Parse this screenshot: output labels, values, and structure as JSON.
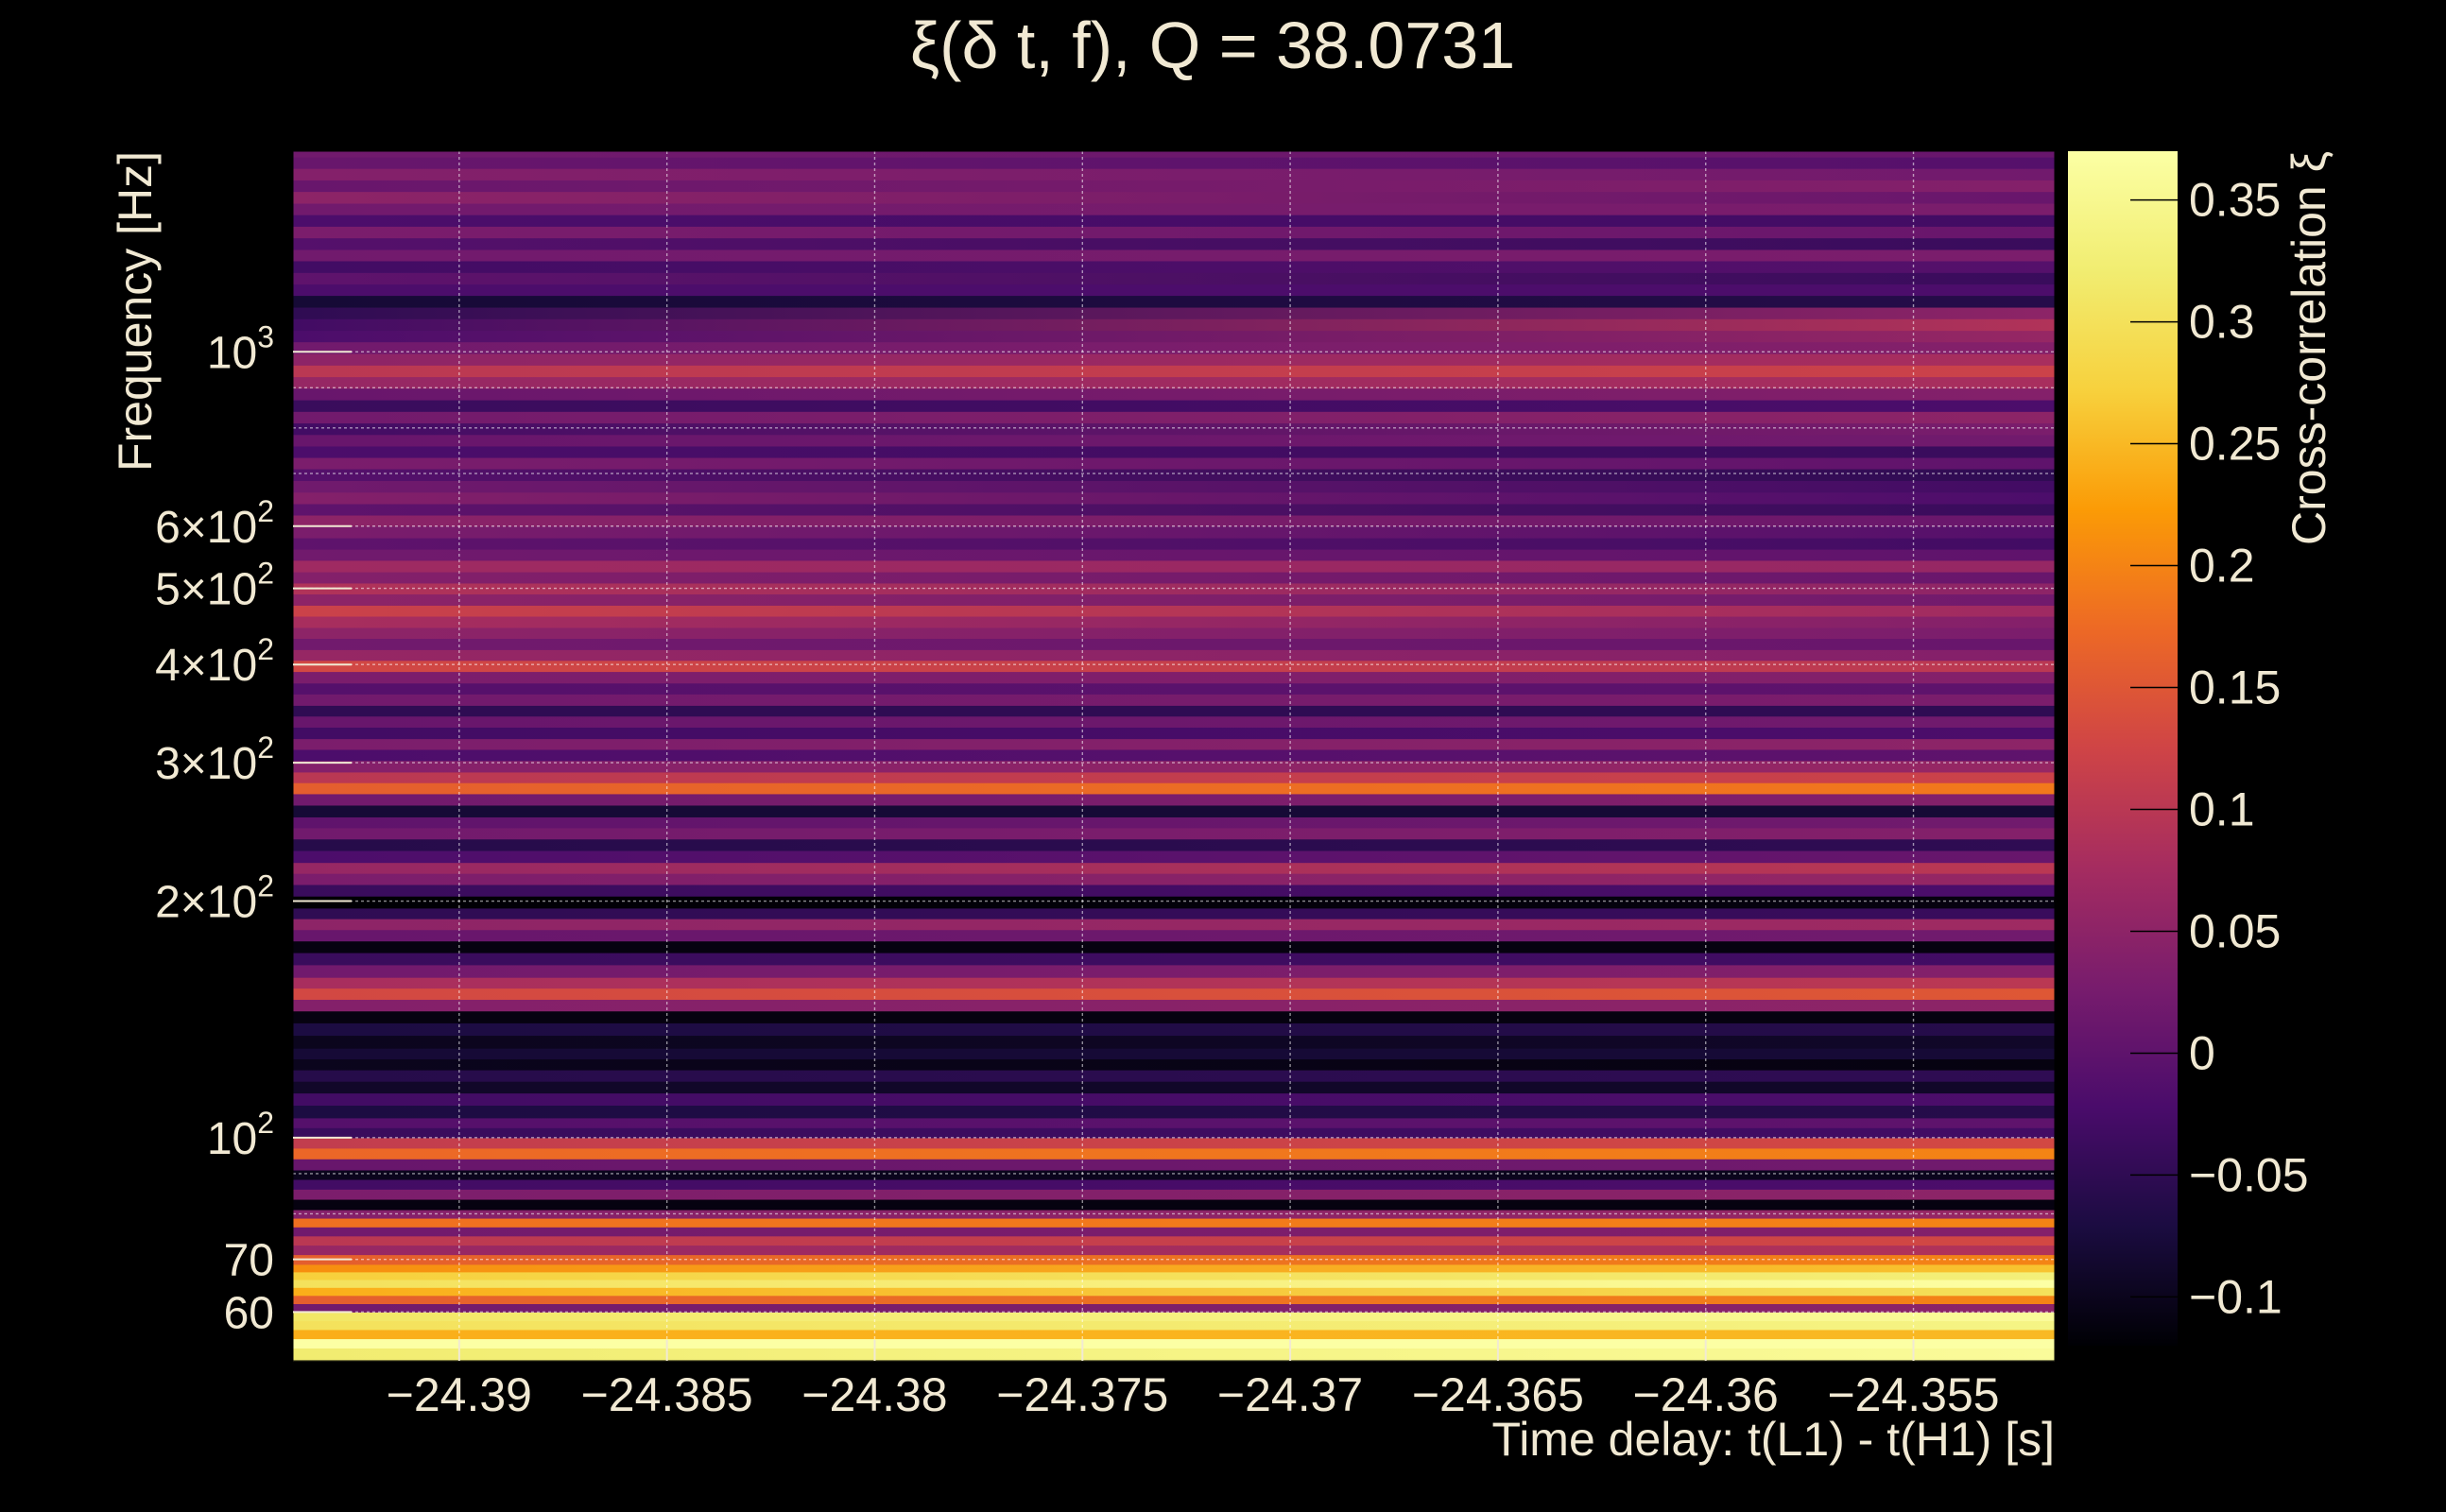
{
  "chart_data": {
    "type": "heatmap",
    "title": "ξ(δ t, f), Q = 38.0731",
    "xlabel": "Time delay: t(L1) - t(H1) [s]",
    "ylabel": "Frequency [Hz]",
    "colorbar_label": "Cross-correlation ξ",
    "xlim": [
      -24.394,
      -24.3516
    ],
    "ylim": [
      52,
      1800
    ],
    "yscale": "log",
    "grid": true,
    "colormap": "inferno",
    "color_range": [
      -0.12,
      0.37
    ],
    "x_ticks": [
      {
        "value": -24.39,
        "label": "−24.39"
      },
      {
        "value": -24.385,
        "label": "−24.385"
      },
      {
        "value": -24.38,
        "label": "−24.38"
      },
      {
        "value": -24.375,
        "label": "−24.375"
      },
      {
        "value": -24.37,
        "label": "−24.37"
      },
      {
        "value": -24.365,
        "label": "−24.365"
      },
      {
        "value": -24.36,
        "label": "−24.36"
      },
      {
        "value": -24.355,
        "label": "−24.355"
      }
    ],
    "y_ticks": [
      {
        "value": 60,
        "base": "60",
        "exp": ""
      },
      {
        "value": 70,
        "base": "70",
        "exp": ""
      },
      {
        "value": 100,
        "base": "10",
        "exp": "2"
      },
      {
        "value": 200,
        "base": "2×10",
        "exp": "2"
      },
      {
        "value": 300,
        "base": "3×10",
        "exp": "2"
      },
      {
        "value": 400,
        "base": "4×10",
        "exp": "2"
      },
      {
        "value": 500,
        "base": "5×10",
        "exp": "2"
      },
      {
        "value": 600,
        "base": "6×10",
        "exp": "2"
      },
      {
        "value": 1000,
        "base": "10",
        "exp": "3"
      }
    ],
    "y_minor_grid": [
      80,
      90,
      700,
      800,
      900
    ],
    "colorbar_ticks": [
      {
        "value": 0.35,
        "label": "0.35"
      },
      {
        "value": 0.3,
        "label": "0.3"
      },
      {
        "value": 0.25,
        "label": "0.25"
      },
      {
        "value": 0.2,
        "label": "0.2"
      },
      {
        "value": 0.15,
        "label": "0.15"
      },
      {
        "value": 0.1,
        "label": "0.1"
      },
      {
        "value": 0.05,
        "label": "0.05"
      },
      {
        "value": 0,
        "label": "0"
      },
      {
        "value": -0.05,
        "label": "−0.05"
      },
      {
        "value": -0.1,
        "label": "−0.1"
      }
    ],
    "bands": [
      {
        "f_lo": 52,
        "f_hi": 54,
        "start": 0.32,
        "end": 0.36
      },
      {
        "f_lo": 54,
        "f_hi": 55.5,
        "start": 0.37,
        "end": 0.37
      },
      {
        "f_lo": 55.5,
        "f_hi": 57,
        "start": 0.24,
        "end": 0.25
      },
      {
        "f_lo": 57,
        "f_hi": 58.5,
        "start": 0.3,
        "end": 0.34
      },
      {
        "f_lo": 58.5,
        "f_hi": 60,
        "start": 0.31,
        "end": 0.36
      },
      {
        "f_lo": 60,
        "f_hi": 61.5,
        "start": 0.02,
        "end": 0.05
      },
      {
        "f_lo": 61.5,
        "f_hi": 63,
        "start": 0.16,
        "end": 0.2
      },
      {
        "f_lo": 63,
        "f_hi": 64.5,
        "start": 0.24,
        "end": 0.3
      },
      {
        "f_lo": 64.5,
        "f_hi": 66,
        "start": 0.3,
        "end": 0.37
      },
      {
        "f_lo": 66,
        "f_hi": 67.5,
        "start": 0.27,
        "end": 0.33
      },
      {
        "f_lo": 67.5,
        "f_hi": 69,
        "start": 0.21,
        "end": 0.26
      },
      {
        "f_lo": 69,
        "f_hi": 71,
        "start": 0.16,
        "end": 0.2
      },
      {
        "f_lo": 71,
        "f_hi": 73,
        "start": 0.06,
        "end": 0.09
      },
      {
        "f_lo": 73,
        "f_hi": 75,
        "start": 0.1,
        "end": 0.13
      },
      {
        "f_lo": 75,
        "f_hi": 77,
        "start": 0.02,
        "end": 0.04
      },
      {
        "f_lo": 77,
        "f_hi": 79,
        "start": 0.18,
        "end": 0.2
      },
      {
        "f_lo": 79,
        "f_hi": 81,
        "start": 0.04,
        "end": 0.06
      },
      {
        "f_lo": 81,
        "f_hi": 83.5,
        "start": -0.11,
        "end": -0.11
      },
      {
        "f_lo": 83.5,
        "f_hi": 86,
        "start": 0.03,
        "end": 0.05
      },
      {
        "f_lo": 86,
        "f_hi": 88.5,
        "start": -0.03,
        "end": -0.02
      },
      {
        "f_lo": 88.5,
        "f_hi": 91,
        "start": -0.1,
        "end": -0.1
      },
      {
        "f_lo": 91,
        "f_hi": 94,
        "start": 0.01,
        "end": 0.02
      },
      {
        "f_lo": 94,
        "f_hi": 97,
        "start": 0.17,
        "end": 0.2
      },
      {
        "f_lo": 97,
        "f_hi": 100,
        "start": 0.11,
        "end": 0.13
      },
      {
        "f_lo": 100,
        "f_hi": 103,
        "start": -0.04,
        "end": -0.03
      },
      {
        "f_lo": 103,
        "f_hi": 106,
        "start": -0.01,
        "end": 0.0
      },
      {
        "f_lo": 106,
        "f_hi": 110,
        "start": -0.07,
        "end": -0.06
      },
      {
        "f_lo": 110,
        "f_hi": 114,
        "start": -0.03,
        "end": -0.02
      },
      {
        "f_lo": 114,
        "f_hi": 118,
        "start": -0.09,
        "end": -0.09
      },
      {
        "f_lo": 118,
        "f_hi": 122,
        "start": -0.06,
        "end": -0.05
      },
      {
        "f_lo": 122,
        "f_hi": 126,
        "start": -0.1,
        "end": -0.11
      },
      {
        "f_lo": 126,
        "f_hi": 130,
        "start": -0.08,
        "end": -0.08
      },
      {
        "f_lo": 130,
        "f_hi": 135,
        "start": -0.1,
        "end": -0.09
      },
      {
        "f_lo": 135,
        "f_hi": 140,
        "start": -0.07,
        "end": -0.06
      },
      {
        "f_lo": 140,
        "f_hi": 145,
        "start": -0.11,
        "end": -0.11
      },
      {
        "f_lo": 145,
        "f_hi": 150,
        "start": 0.04,
        "end": 0.05
      },
      {
        "f_lo": 150,
        "f_hi": 155,
        "start": 0.13,
        "end": 0.15
      },
      {
        "f_lo": 155,
        "f_hi": 160,
        "start": 0.08,
        "end": 0.1
      },
      {
        "f_lo": 160,
        "f_hi": 166,
        "start": 0.02,
        "end": 0.04
      },
      {
        "f_lo": 166,
        "f_hi": 172,
        "start": -0.04,
        "end": -0.03
      },
      {
        "f_lo": 172,
        "f_hi": 178,
        "start": -0.11,
        "end": -0.11
      },
      {
        "f_lo": 178,
        "f_hi": 184,
        "start": 0.01,
        "end": 0.02
      },
      {
        "f_lo": 184,
        "f_hi": 190,
        "start": 0.05,
        "end": 0.07
      },
      {
        "f_lo": 190,
        "f_hi": 196,
        "start": -0.05,
        "end": -0.04
      },
      {
        "f_lo": 196,
        "f_hi": 203,
        "start": -0.12,
        "end": -0.11
      },
      {
        "f_lo": 203,
        "f_hi": 210,
        "start": -0.04,
        "end": -0.02
      },
      {
        "f_lo": 210,
        "f_hi": 217,
        "start": 0.03,
        "end": 0.06
      },
      {
        "f_lo": 217,
        "f_hi": 224,
        "start": 0.06,
        "end": 0.1
      },
      {
        "f_lo": 224,
        "f_hi": 232,
        "start": -0.02,
        "end": 0.01
      },
      {
        "f_lo": 232,
        "f_hi": 240,
        "start": -0.06,
        "end": -0.05
      },
      {
        "f_lo": 240,
        "f_hi": 248,
        "start": 0.02,
        "end": 0.04
      },
      {
        "f_lo": 248,
        "f_hi": 256,
        "start": 0.0,
        "end": 0.02
      },
      {
        "f_lo": 256,
        "f_hi": 265,
        "start": -0.08,
        "end": -0.08
      },
      {
        "f_lo": 265,
        "f_hi": 274,
        "start": 0.02,
        "end": 0.04
      },
      {
        "f_lo": 274,
        "f_hi": 283,
        "start": 0.16,
        "end": 0.19
      },
      {
        "f_lo": 283,
        "f_hi": 292,
        "start": 0.1,
        "end": 0.12
      },
      {
        "f_lo": 292,
        "f_hi": 302,
        "start": 0.04,
        "end": 0.06
      },
      {
        "f_lo": 302,
        "f_hi": 312,
        "start": -0.02,
        "end": 0.0
      },
      {
        "f_lo": 312,
        "f_hi": 322,
        "start": 0.03,
        "end": 0.05
      },
      {
        "f_lo": 322,
        "f_hi": 333,
        "start": -0.03,
        "end": -0.02
      },
      {
        "f_lo": 333,
        "f_hi": 344,
        "start": 0.01,
        "end": 0.02
      },
      {
        "f_lo": 344,
        "f_hi": 355,
        "start": -0.05,
        "end": -0.05
      },
      {
        "f_lo": 355,
        "f_hi": 367,
        "start": 0.02,
        "end": 0.03
      },
      {
        "f_lo": 367,
        "f_hi": 379,
        "start": -0.01,
        "end": 0.0
      },
      {
        "f_lo": 379,
        "f_hi": 392,
        "start": 0.03,
        "end": 0.04
      },
      {
        "f_lo": 392,
        "f_hi": 405,
        "start": 0.13,
        "end": 0.1
      },
      {
        "f_lo": 405,
        "f_hi": 418,
        "start": 0.06,
        "end": 0.04
      },
      {
        "f_lo": 418,
        "f_hi": 432,
        "start": 0.02,
        "end": 0.01
      },
      {
        "f_lo": 432,
        "f_hi": 446,
        "start": 0.05,
        "end": 0.03
      },
      {
        "f_lo": 446,
        "f_hi": 461,
        "start": 0.08,
        "end": 0.04
      },
      {
        "f_lo": 461,
        "f_hi": 476,
        "start": 0.12,
        "end": 0.07
      },
      {
        "f_lo": 476,
        "f_hi": 492,
        "start": 0.05,
        "end": 0.02
      },
      {
        "f_lo": 492,
        "f_hi": 508,
        "start": 0.09,
        "end": 0.05
      },
      {
        "f_lo": 508,
        "f_hi": 525,
        "start": 0.04,
        "end": 0.01
      },
      {
        "f_lo": 525,
        "f_hi": 543,
        "start": 0.07,
        "end": 0.06
      },
      {
        "f_lo": 543,
        "f_hi": 561,
        "start": 0.02,
        "end": 0.0
      },
      {
        "f_lo": 561,
        "f_hi": 580,
        "start": 0.0,
        "end": -0.03
      },
      {
        "f_lo": 580,
        "f_hi": 600,
        "start": 0.03,
        "end": -0.01
      },
      {
        "f_lo": 600,
        "f_hi": 620,
        "start": 0.05,
        "end": 0.01
      },
      {
        "f_lo": 620,
        "f_hi": 641,
        "start": 0.0,
        "end": -0.04
      },
      {
        "f_lo": 641,
        "f_hi": 663,
        "start": 0.04,
        "end": -0.02
      },
      {
        "f_lo": 663,
        "f_hi": 686,
        "start": 0.02,
        "end": -0.03
      },
      {
        "f_lo": 686,
        "f_hi": 710,
        "start": -0.01,
        "end": -0.05
      },
      {
        "f_lo": 710,
        "f_hi": 734,
        "start": 0.03,
        "end": 0.0
      },
      {
        "f_lo": 734,
        "f_hi": 759,
        "start": -0.02,
        "end": -0.04
      },
      {
        "f_lo": 759,
        "f_hi": 785,
        "start": 0.01,
        "end": 0.02
      },
      {
        "f_lo": 785,
        "f_hi": 812,
        "start": -0.03,
        "end": 0.03
      },
      {
        "f_lo": 812,
        "f_hi": 840,
        "start": 0.02,
        "end": 0.05
      },
      {
        "f_lo": 840,
        "f_hi": 869,
        "start": -0.04,
        "end": -0.02
      },
      {
        "f_lo": 869,
        "f_hi": 899,
        "start": 0.01,
        "end": 0.04
      },
      {
        "f_lo": 899,
        "f_hi": 930,
        "start": 0.06,
        "end": 0.08
      },
      {
        "f_lo": 930,
        "f_hi": 962,
        "start": 0.1,
        "end": 0.12
      },
      {
        "f_lo": 962,
        "f_hi": 995,
        "start": 0.05,
        "end": 0.08
      },
      {
        "f_lo": 995,
        "f_hi": 1030,
        "start": 0.02,
        "end": 0.04
      },
      {
        "f_lo": 1030,
        "f_hi": 1065,
        "start": -0.02,
        "end": 0.06
      },
      {
        "f_lo": 1065,
        "f_hi": 1102,
        "start": -0.03,
        "end": 0.09
      },
      {
        "f_lo": 1102,
        "f_hi": 1140,
        "start": -0.05,
        "end": 0.05
      },
      {
        "f_lo": 1140,
        "f_hi": 1180,
        "start": -0.08,
        "end": -0.06
      },
      {
        "f_lo": 1180,
        "f_hi": 1220,
        "start": -0.02,
        "end": -0.02
      },
      {
        "f_lo": 1220,
        "f_hi": 1262,
        "start": 0.0,
        "end": -0.04
      },
      {
        "f_lo": 1262,
        "f_hi": 1306,
        "start": -0.03,
        "end": -0.01
      },
      {
        "f_lo": 1306,
        "f_hi": 1350,
        "start": 0.02,
        "end": 0.03
      },
      {
        "f_lo": 1350,
        "f_hi": 1397,
        "start": -0.01,
        "end": -0.04
      },
      {
        "f_lo": 1397,
        "f_hi": 1445,
        "start": 0.03,
        "end": 0.01
      },
      {
        "f_lo": 1445,
        "f_hi": 1495,
        "start": -0.02,
        "end": -0.03
      },
      {
        "f_lo": 1495,
        "f_hi": 1546,
        "start": 0.02,
        "end": 0.03
      },
      {
        "f_lo": 1546,
        "f_hi": 1600,
        "start": 0.05,
        "end": 0.01
      },
      {
        "f_lo": 1600,
        "f_hi": 1655,
        "start": 0.01,
        "end": 0.04
      },
      {
        "f_lo": 1655,
        "f_hi": 1712,
        "start": 0.04,
        "end": 0.02
      },
      {
        "f_lo": 1712,
        "f_hi": 1770,
        "start": 0.01,
        "end": -0.01
      },
      {
        "f_lo": 1770,
        "f_hi": 1800,
        "start": 0.02,
        "end": 0.01
      }
    ]
  }
}
